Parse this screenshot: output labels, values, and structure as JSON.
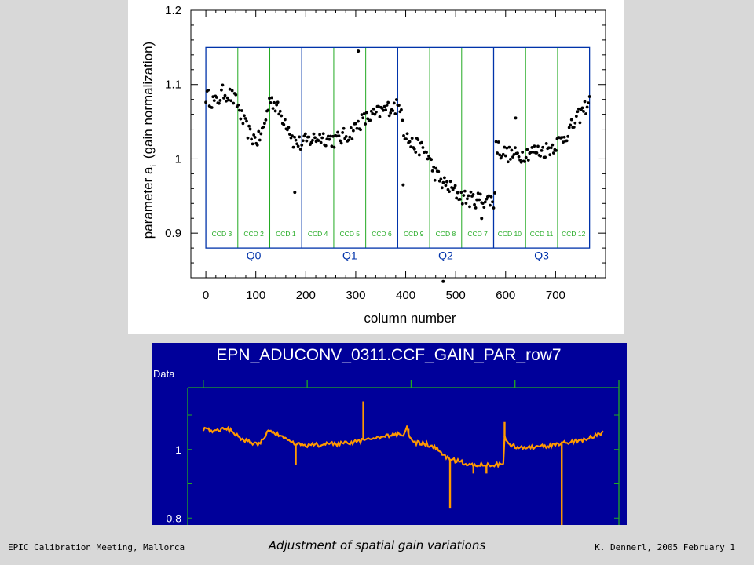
{
  "footer": {
    "left": "EPIC Calibration Meeting, Mallorca",
    "center": "Adjustment of spatial gain variations",
    "right": "K. Dennerl, 2005 February 1"
  },
  "colors": {
    "blue": "#0033aa",
    "green": "#22aa22",
    "orange": "#ff9900",
    "navy": "#00009a"
  },
  "chart_data": [
    {
      "type": "scatter",
      "title": "",
      "xlabel": "column number",
      "ylabel": "parameter a",
      "ylabel_sub": "i",
      "ylabel_suffix": "(gain normalization)",
      "xlim": [
        -30,
        800
      ],
      "ylim": [
        0.84,
        1.2
      ],
      "xticks": [
        0,
        100,
        200,
        300,
        400,
        500,
        600,
        700
      ],
      "yticks": [
        0.9,
        1,
        1.1,
        1.2
      ],
      "ytick_labels": [
        "0.9",
        "1",
        "1.1",
        "1.2"
      ],
      "ccd_labels": [
        "CCD 3",
        "CCD 2",
        "CCD 1",
        "CCD 4",
        "CCD 5",
        "CCD 6",
        "CCD 9",
        "CCD 8",
        "CCD 7",
        "CCD 10",
        "CCD 11",
        "CCD 12"
      ],
      "quadrants": [
        "Q0",
        "Q1",
        "Q2",
        "Q3"
      ],
      "box_y": [
        0.88,
        1.15
      ],
      "ccd_width": 64,
      "trend": [
        [
          0,
          1.085
        ],
        [
          20,
          1.075
        ],
        [
          35,
          1.09
        ],
        [
          50,
          1.085
        ],
        [
          62,
          1.075
        ],
        [
          75,
          1.05
        ],
        [
          90,
          1.03
        ],
        [
          105,
          1.025
        ],
        [
          115,
          1.04
        ],
        [
          125,
          1.07
        ],
        [
          130,
          1.085
        ],
        [
          136,
          1.075
        ],
        [
          150,
          1.06
        ],
        [
          165,
          1.045
        ],
        [
          175,
          1.025
        ],
        [
          190,
          1.02
        ],
        [
          205,
          1.025
        ],
        [
          230,
          1.03
        ],
        [
          260,
          1.025
        ],
        [
          290,
          1.035
        ],
        [
          310,
          1.05
        ],
        [
          340,
          1.06
        ],
        [
          370,
          1.07
        ],
        [
          385,
          1.07
        ],
        [
          392,
          1.075
        ],
        [
          395,
          1.04
        ],
        [
          410,
          1.02
        ],
        [
          430,
          1.015
        ],
        [
          445,
          1.005
        ],
        [
          455,
          0.985
        ],
        [
          470,
          0.97
        ],
        [
          490,
          0.96
        ],
        [
          510,
          0.95
        ],
        [
          530,
          0.945
        ],
        [
          550,
          0.945
        ],
        [
          570,
          0.945
        ],
        [
          578,
          0.94
        ],
        [
          580,
          1.02
        ],
        [
          590,
          1.01
        ],
        [
          610,
          1.005
        ],
        [
          630,
          1.005
        ],
        [
          650,
          1.01
        ],
        [
          670,
          1.01
        ],
        [
          690,
          1.015
        ],
        [
          710,
          1.025
        ],
        [
          730,
          1.04
        ],
        [
          750,
          1.06
        ],
        [
          770,
          1.08
        ]
      ],
      "outliers": [
        [
          305,
          1.145
        ],
        [
          178,
          0.955
        ],
        [
          475,
          0.835
        ],
        [
          552,
          0.92
        ],
        [
          395,
          0.965
        ],
        [
          620,
          1.055
        ]
      ]
    },
    {
      "type": "line",
      "title": "EPN_ADUCONV_0311.CCF_GAIN_PAR_row7",
      "ylabel": "Data",
      "xlabel": "",
      "xlim": [
        -30,
        800
      ],
      "ylim": [
        0.78,
        1.18
      ],
      "yticks": [
        0.8,
        1
      ],
      "ytick_labels": [
        "0.8",
        "1"
      ],
      "trend": [
        [
          0,
          1.06
        ],
        [
          20,
          1.055
        ],
        [
          40,
          1.06
        ],
        [
          55,
          1.055
        ],
        [
          70,
          1.035
        ],
        [
          90,
          1.02
        ],
        [
          105,
          1.015
        ],
        [
          115,
          1.03
        ],
        [
          125,
          1.055
        ],
        [
          135,
          1.05
        ],
        [
          150,
          1.035
        ],
        [
          165,
          1.025
        ],
        [
          180,
          1.015
        ],
        [
          200,
          1.012
        ],
        [
          240,
          1.015
        ],
        [
          280,
          1.018
        ],
        [
          320,
          1.03
        ],
        [
          360,
          1.04
        ],
        [
          385,
          1.045
        ],
        [
          392,
          1.07
        ],
        [
          396,
          1.035
        ],
        [
          410,
          1.02
        ],
        [
          430,
          1.015
        ],
        [
          445,
          1.005
        ],
        [
          455,
          0.995
        ],
        [
          470,
          0.975
        ],
        [
          490,
          0.965
        ],
        [
          520,
          0.955
        ],
        [
          550,
          0.955
        ],
        [
          575,
          0.955
        ],
        [
          578,
          0.96
        ],
        [
          580,
          1.035
        ],
        [
          590,
          1.012
        ],
        [
          620,
          1.005
        ],
        [
          660,
          1.01
        ],
        [
          700,
          1.02
        ],
        [
          740,
          1.03
        ],
        [
          760,
          1.045
        ],
        [
          770,
          1.05
        ]
      ],
      "spikes": [
        [
          308,
          1.14
        ],
        [
          178,
          0.955
        ],
        [
          475,
          0.83
        ],
        [
          690,
          0.66
        ],
        [
          580,
          1.08
        ],
        [
          395,
          1.06
        ],
        [
          520,
          0.93
        ],
        [
          545,
          0.93
        ]
      ]
    }
  ]
}
